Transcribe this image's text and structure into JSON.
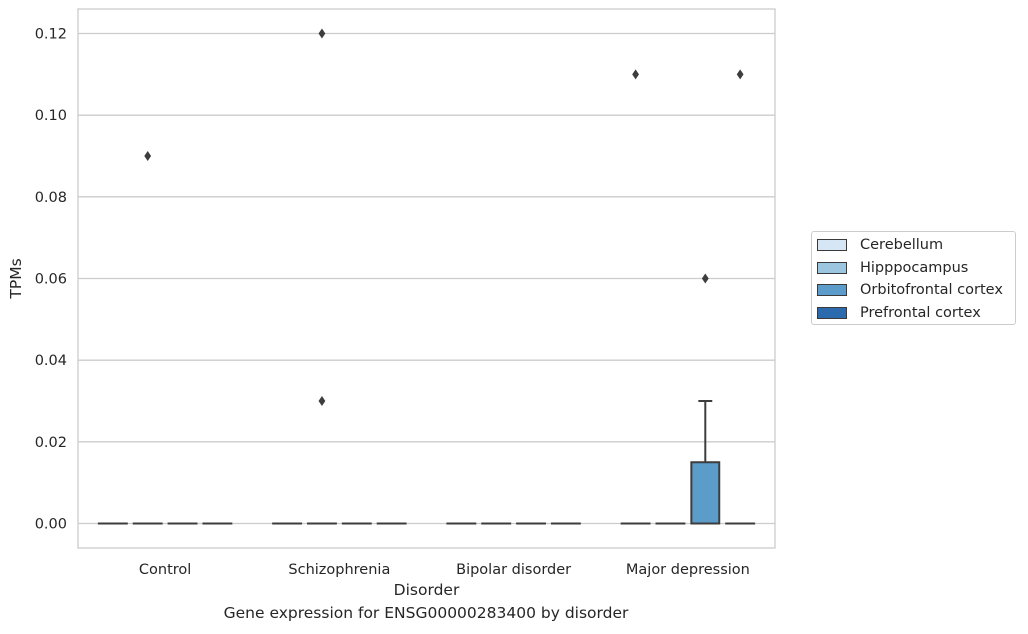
{
  "chart_data": {
    "type": "box",
    "title": "Gene expression for ENSG00000283400 by disorder",
    "xlabel": "Disorder",
    "ylabel": "TPMs",
    "ylim": [
      -0.006,
      0.126
    ],
    "yticks": [
      0.0,
      0.02,
      0.04,
      0.06,
      0.08,
      0.1,
      0.12
    ],
    "ytick_labels": [
      "0.00",
      "0.02",
      "0.04",
      "0.06",
      "0.08",
      "0.10",
      "0.12"
    ],
    "categories": [
      "Control",
      "Schizophrenia",
      "Bipolar disorder",
      "Major depression"
    ],
    "grid": true,
    "legend_position": "right",
    "series": [
      {
        "name": "Cerebellum",
        "color": "#d6e6f4",
        "boxes": [
          {
            "category": "Control",
            "q1": 0,
            "median": 0,
            "q3": 0,
            "whisker_low": 0,
            "whisker_high": 0,
            "outliers": []
          },
          {
            "category": "Schizophrenia",
            "q1": 0,
            "median": 0,
            "q3": 0,
            "whisker_low": 0,
            "whisker_high": 0,
            "outliers": []
          },
          {
            "category": "Bipolar disorder",
            "q1": 0,
            "median": 0,
            "q3": 0,
            "whisker_low": 0,
            "whisker_high": 0,
            "outliers": []
          },
          {
            "category": "Major depression",
            "q1": 0,
            "median": 0,
            "q3": 0,
            "whisker_low": 0,
            "whisker_high": 0,
            "outliers": [
              0.11
            ]
          }
        ]
      },
      {
        "name": "Hipppocampus",
        "color": "#9cc6e0",
        "boxes": [
          {
            "category": "Control",
            "q1": 0,
            "median": 0,
            "q3": 0,
            "whisker_low": 0,
            "whisker_high": 0,
            "outliers": [
              0.09
            ]
          },
          {
            "category": "Schizophrenia",
            "q1": 0,
            "median": 0,
            "q3": 0,
            "whisker_low": 0,
            "whisker_high": 0,
            "outliers": [
              0.12,
              0.03
            ]
          },
          {
            "category": "Bipolar disorder",
            "q1": 0,
            "median": 0,
            "q3": 0,
            "whisker_low": 0,
            "whisker_high": 0,
            "outliers": []
          },
          {
            "category": "Major depression",
            "q1": 0,
            "median": 0,
            "q3": 0,
            "whisker_low": 0,
            "whisker_high": 0,
            "outliers": []
          }
        ]
      },
      {
        "name": "Orbitofrontal cortex",
        "color": "#5b9ccb",
        "boxes": [
          {
            "category": "Control",
            "q1": 0,
            "median": 0,
            "q3": 0,
            "whisker_low": 0,
            "whisker_high": 0,
            "outliers": []
          },
          {
            "category": "Schizophrenia",
            "q1": 0,
            "median": 0,
            "q3": 0,
            "whisker_low": 0,
            "whisker_high": 0,
            "outliers": []
          },
          {
            "category": "Bipolar disorder",
            "q1": 0,
            "median": 0,
            "q3": 0,
            "whisker_low": 0,
            "whisker_high": 0,
            "outliers": []
          },
          {
            "category": "Major depression",
            "q1": 0,
            "median": 0,
            "q3": 0.015,
            "whisker_low": 0,
            "whisker_high": 0.03,
            "outliers": [
              0.06
            ]
          }
        ]
      },
      {
        "name": "Prefrontal cortex",
        "color": "#2b6aad",
        "boxes": [
          {
            "category": "Control",
            "q1": 0,
            "median": 0,
            "q3": 0,
            "whisker_low": 0,
            "whisker_high": 0,
            "outliers": []
          },
          {
            "category": "Schizophrenia",
            "q1": 0,
            "median": 0,
            "q3": 0,
            "whisker_low": 0,
            "whisker_high": 0,
            "outliers": []
          },
          {
            "category": "Bipolar disorder",
            "q1": 0,
            "median": 0,
            "q3": 0,
            "whisker_low": 0,
            "whisker_high": 0,
            "outliers": []
          },
          {
            "category": "Major depression",
            "q1": 0,
            "median": 0,
            "q3": 0,
            "whisker_low": 0,
            "whisker_high": 0,
            "outliers": [
              0.11
            ]
          }
        ]
      }
    ]
  }
}
